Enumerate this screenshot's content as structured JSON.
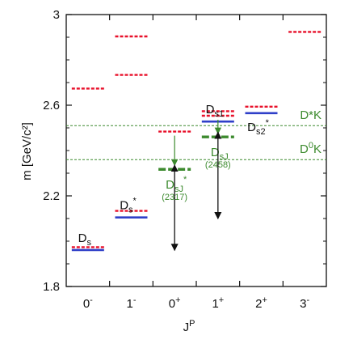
{
  "chart_data": {
    "type": "level-diagram",
    "xlabel": "J",
    "xlabel_sup": "P",
    "ylabel": "m [GeV/c²]",
    "ylim": [
      1.8,
      3.0
    ],
    "y_ticks": [
      {
        "value": 1.8,
        "label": "1.8"
      },
      {
        "value": 2.2,
        "label": "2.2"
      },
      {
        "value": 2.6,
        "label": "2.6"
      },
      {
        "value": 3.0,
        "label": "3"
      }
    ],
    "categories": [
      {
        "base": "0",
        "sup": "-"
      },
      {
        "base": "1",
        "sup": "-"
      },
      {
        "base": "0",
        "sup": "+"
      },
      {
        "base": "1",
        "sup": "+"
      },
      {
        "base": "2",
        "sup": "+"
      },
      {
        "base": "3",
        "sup": "-"
      }
    ],
    "colors": {
      "prediction": "#e8102a",
      "experiment": "#2f3fc8",
      "new_state": "#3c8a2e",
      "threshold": "#3c8a2e",
      "arrow": "#111111",
      "axis": "#111111"
    },
    "thresholds": [
      {
        "label_base": "D*K",
        "label_sup": "",
        "value": 2.51
      },
      {
        "label_base": "D",
        "label_sup": "0",
        "label_rest": "K",
        "value": 2.36
      }
    ],
    "predicted_levels": [
      {
        "jp": 0,
        "value": 1.97
      },
      {
        "jp": 0,
        "value": 2.67
      },
      {
        "jp": 1,
        "value": 2.13
      },
      {
        "jp": 1,
        "value": 2.73
      },
      {
        "jp": 1,
        "value": 2.9
      },
      {
        "jp": 2,
        "value": 2.48
      },
      {
        "jp": 3,
        "value": 2.57
      },
      {
        "jp": 3,
        "value": 2.55
      },
      {
        "jp": 4,
        "value": 2.59
      },
      {
        "jp": 5,
        "value": 2.92
      }
    ],
    "measured_levels": [
      {
        "jp": 0,
        "value": 1.968
      },
      {
        "jp": 1,
        "value": 2.112
      },
      {
        "jp": 3,
        "value": 2.535
      },
      {
        "jp": 4,
        "value": 2.572
      }
    ],
    "new_states": [
      {
        "jp": 2,
        "value": 2.317,
        "name": "D",
        "sub": "sJ",
        "sup": "*",
        "mass": "(2317)"
      },
      {
        "jp": 3,
        "value": 2.46,
        "name": "D",
        "sub": "sJ",
        "sup": "",
        "mass": "(2458)"
      }
    ],
    "state_labels": [
      {
        "jp": 0,
        "name": "D",
        "sub": "s",
        "sup": ""
      },
      {
        "jp": 1,
        "name": "D",
        "sub": "s",
        "sup": "*"
      },
      {
        "jp": 3,
        "name": "D",
        "sub": "s1",
        "sup": ""
      },
      {
        "jp": 4,
        "name": "D",
        "sub": "s2",
        "sup": "*"
      }
    ],
    "shift_arrows": [
      {
        "jp": 2,
        "from": 2.48,
        "to": 2.32
      },
      {
        "jp": 3,
        "from": 2.55,
        "to": 2.46
      }
    ],
    "double_arrows": [
      {
        "jp": 2.5,
        "from": 1.97,
        "to": 2.325
      },
      {
        "jp": 3.5,
        "from": 2.11,
        "to": 2.47
      }
    ]
  }
}
